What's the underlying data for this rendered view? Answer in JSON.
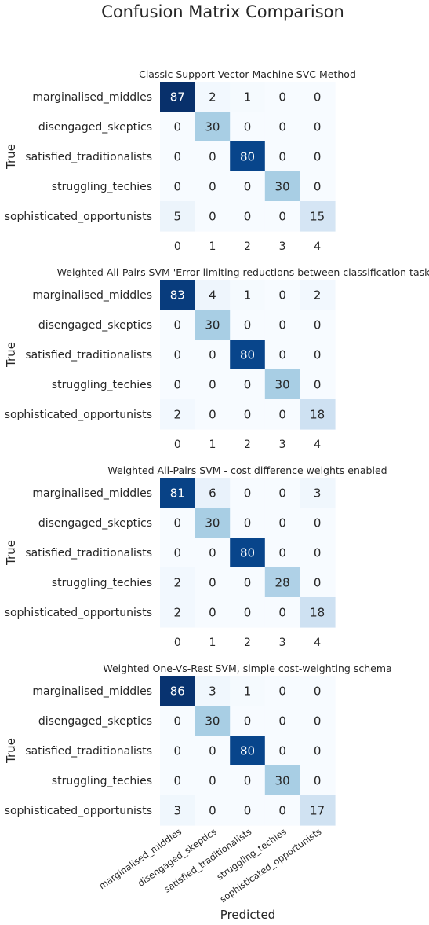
{
  "chart_data": {
    "type": "heatmap",
    "title": "Confusion Matrix Comparison",
    "ylabel": "True",
    "xlabel": "Predicted",
    "row_labels": [
      "marginalised_middles",
      "disengaged_skeptics",
      "satisfied_traditionalists",
      "struggling_techies",
      "sophisticated_opportunists"
    ],
    "col_tick_labels": [
      "0",
      "1",
      "2",
      "3",
      "4"
    ],
    "bottom_col_labels": [
      "marginalised_middles",
      "disengaged_skeptics",
      "satisfied_traditionalists",
      "struggling_techies",
      "sophisticated_opportunists"
    ],
    "colormap": {
      "name": "Blues",
      "min": 0,
      "max": 87,
      "low": "#f7fbff",
      "high": "#08306b"
    },
    "colorbar": false,
    "panels": [
      {
        "title": "Classic Support Vector Machine SVC Method",
        "matrix": [
          [
            87,
            2,
            1,
            0,
            0
          ],
          [
            0,
            30,
            0,
            0,
            0
          ],
          [
            0,
            0,
            80,
            0,
            0
          ],
          [
            0,
            0,
            0,
            30,
            0
          ],
          [
            5,
            0,
            0,
            0,
            15
          ]
        ]
      },
      {
        "title": "Weighted All-Pairs SVM 'Error limiting reductions between classification tasks'",
        "matrix": [
          [
            83,
            4,
            1,
            0,
            2
          ],
          [
            0,
            30,
            0,
            0,
            0
          ],
          [
            0,
            0,
            80,
            0,
            0
          ],
          [
            0,
            0,
            0,
            30,
            0
          ],
          [
            2,
            0,
            0,
            0,
            18
          ]
        ]
      },
      {
        "title": "Weighted All-Pairs SVM - cost difference weights enabled",
        "matrix": [
          [
            81,
            6,
            0,
            0,
            3
          ],
          [
            0,
            30,
            0,
            0,
            0
          ],
          [
            0,
            0,
            80,
            0,
            0
          ],
          [
            2,
            0,
            0,
            28,
            0
          ],
          [
            2,
            0,
            0,
            0,
            18
          ]
        ]
      },
      {
        "title": "Weighted One-Vs-Rest SVM, simple cost-weighting schema",
        "matrix": [
          [
            86,
            3,
            1,
            0,
            0
          ],
          [
            0,
            30,
            0,
            0,
            0
          ],
          [
            0,
            0,
            80,
            0,
            0
          ],
          [
            0,
            0,
            0,
            30,
            0
          ],
          [
            3,
            0,
            0,
            0,
            17
          ]
        ]
      }
    ]
  }
}
